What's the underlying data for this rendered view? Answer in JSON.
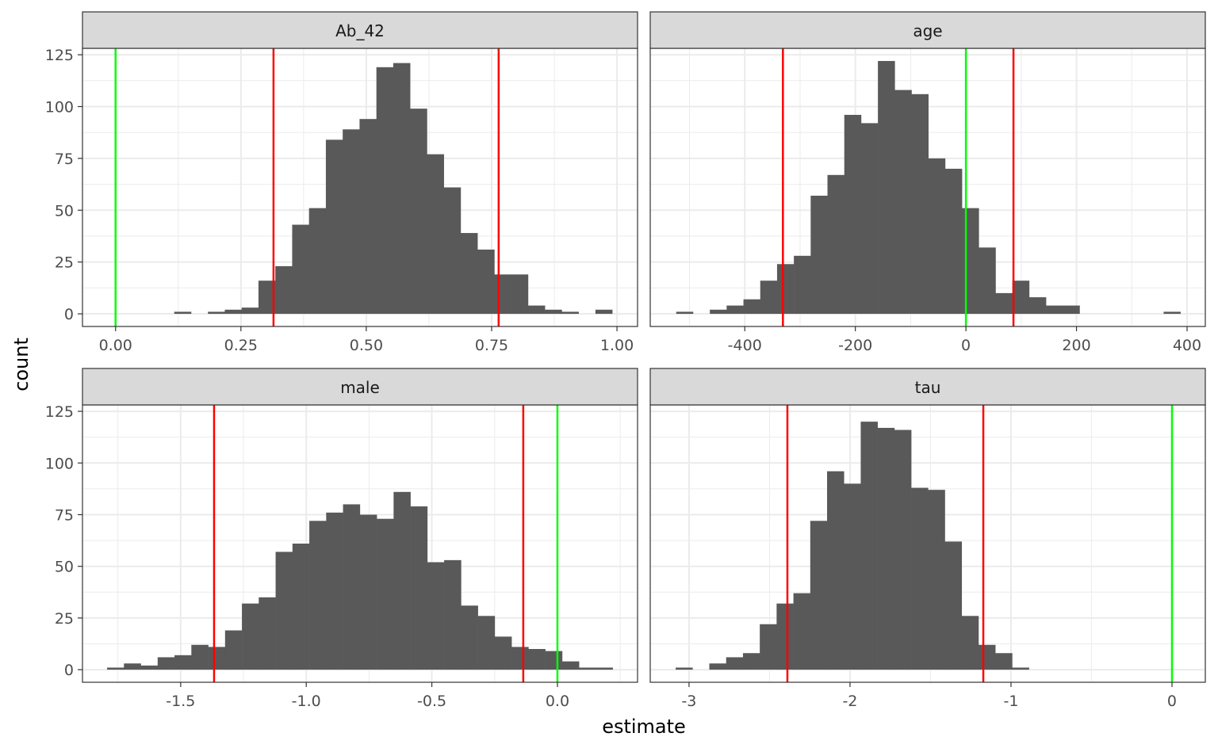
{
  "chart_data": {
    "type": "histogram",
    "xlabel": "estimate",
    "ylabel": "count",
    "y_ticks": [
      0,
      25,
      50,
      75,
      100,
      125
    ],
    "ylim": [
      -6.1,
      128.1
    ],
    "grid": true,
    "bar_color": "#595959",
    "interval_line_color": "#ff0000",
    "zero_line_color": "#00ff00",
    "panels": [
      {
        "label": "Ab_42",
        "xlim": [
          -0.066,
          1.041
        ],
        "x_ticks": [
          0,
          0.25,
          0.5,
          0.75,
          1.0
        ],
        "x_tick_labels": [
          "0.00",
          "0.25",
          "0.50",
          "0.75",
          "1.00"
        ],
        "bin_start": 0.117,
        "bin_width": 0.0336,
        "counts": [
          1,
          0,
          1,
          2,
          3,
          16,
          23,
          43,
          51,
          84,
          89,
          94,
          119,
          121,
          99,
          77,
          61,
          39,
          31,
          19,
          19,
          4,
          2,
          1,
          0,
          2
        ],
        "interval_lines": [
          0.315,
          0.764
        ],
        "zero_line": 0
      },
      {
        "label": "age",
        "xlim": [
          -571,
          433
        ],
        "x_ticks": [
          -400,
          -200,
          0,
          200,
          400
        ],
        "x_tick_labels": [
          "-400",
          "-200",
          "0",
          "200",
          "400"
        ],
        "bin_start": -524,
        "bin_width": 30.4,
        "counts": [
          1,
          0,
          2,
          4,
          7,
          16,
          24,
          28,
          57,
          67,
          96,
          92,
          122,
          108,
          106,
          75,
          70,
          51,
          32,
          10,
          16,
          8,
          4,
          4,
          0,
          0,
          0,
          0,
          0,
          1
        ],
        "interval_lines": [
          -331,
          86
        ],
        "zero_line": 0
      },
      {
        "label": "male",
        "xlim": [
          -1.891,
          0.319
        ],
        "x_ticks": [
          -1.5,
          -1.0,
          -0.5,
          0.0
        ],
        "x_tick_labels": [
          "-1.5",
          "-1.0",
          "-0.5",
          "0.0"
        ],
        "bin_start": -1.793,
        "bin_width": 0.0671,
        "counts": [
          1,
          3,
          2,
          6,
          7,
          12,
          11,
          19,
          32,
          35,
          57,
          61,
          72,
          76,
          80,
          75,
          73,
          86,
          79,
          52,
          53,
          31,
          26,
          16,
          11,
          10,
          9,
          4,
          1,
          1
        ],
        "interval_lines": [
          -1.367,
          -0.136
        ],
        "zero_line": 0
      },
      {
        "label": "tau",
        "xlim": [
          -3.241,
          0.207
        ],
        "x_ticks": [
          -3,
          -2,
          -1,
          0
        ],
        "x_tick_labels": [
          "-3",
          "-2",
          "-1",
          "0"
        ],
        "bin_start": -3.083,
        "bin_width": 0.1045,
        "counts": [
          1,
          0,
          3,
          6,
          8,
          22,
          32,
          37,
          72,
          96,
          90,
          120,
          117,
          116,
          88,
          87,
          62,
          26,
          12,
          8,
          1
        ],
        "interval_lines": [
          -2.389,
          -1.172
        ],
        "zero_line": 0
      }
    ]
  }
}
